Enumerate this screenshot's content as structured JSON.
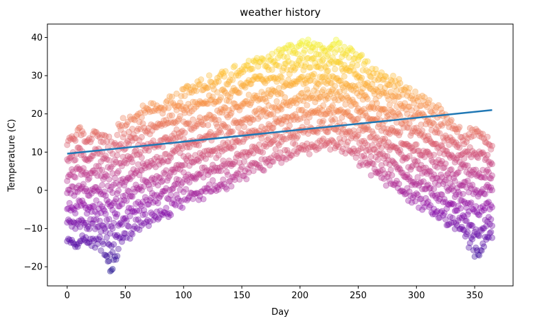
{
  "chart_data": {
    "type": "scatter",
    "title": "weather history",
    "xlabel": "Day",
    "ylabel": "Temperature (C)",
    "xlim": [
      -17,
      383
    ],
    "ylim": [
      -25,
      43.5
    ],
    "xticks": [
      0,
      50,
      100,
      150,
      200,
      250,
      300,
      350
    ],
    "yticks": [
      -20,
      -10,
      0,
      10,
      20,
      30,
      40
    ],
    "grid": false,
    "legend": "none",
    "colormap": "plasma",
    "point_alpha": 0.35,
    "scatter_band": {
      "description_of_points": "daily temperature observations spread between lower and upper bounds per day",
      "days": [
        0,
        10,
        20,
        30,
        38,
        45,
        60,
        80,
        100,
        120,
        140,
        160,
        180,
        200,
        220,
        240,
        260,
        280,
        300,
        320,
        340,
        350,
        365
      ],
      "upper": [
        11,
        15,
        13,
        14,
        11,
        16,
        19,
        22,
        25,
        28,
        30,
        33,
        35,
        38,
        37,
        37,
        31,
        28,
        24,
        20,
        14,
        15,
        12
      ],
      "lower": [
        -13,
        -14,
        -13,
        -14,
        -21,
        -13,
        -9,
        -6,
        -2,
        0,
        3,
        6,
        9,
        11,
        13,
        12,
        6,
        2,
        -3,
        -6,
        -10,
        -16,
        -12
      ]
    },
    "series": [
      {
        "type": "line",
        "color": "#1f77b4",
        "x": [
          0,
          365
        ],
        "y": [
          9.6,
          21.0
        ]
      }
    ]
  }
}
